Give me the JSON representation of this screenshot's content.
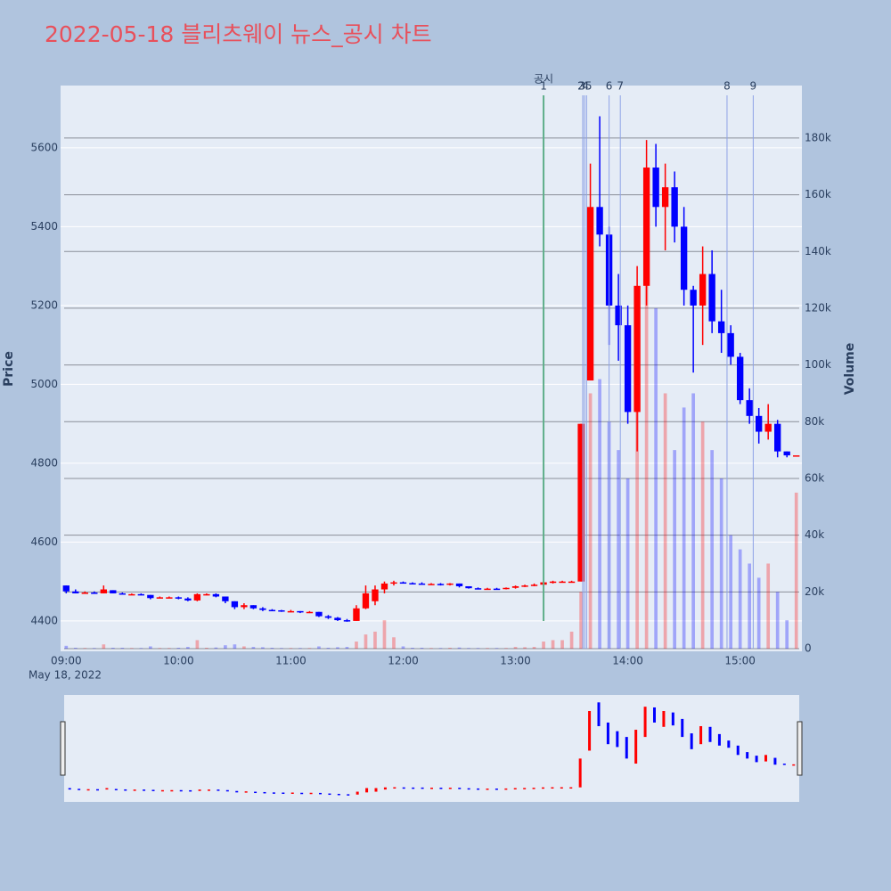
{
  "chart_data": {
    "type": "candlestick",
    "title": "2022-05-18 블리츠웨이 뉴스_공시 차트",
    "ylabel": "Price",
    "y2label": "Volume",
    "x_date_label": "May 18, 2022",
    "increasing_color": "#ff0000",
    "decreasing_color": "#0000ff",
    "xlim": [
      "2022-05-18 08:57",
      "2022-05-18 15:33"
    ],
    "xticks": [
      {
        "value": "2022-05-18 09:00",
        "label": "09:00"
      },
      {
        "value": "2022-05-18 10:00",
        "label": "10:00"
      },
      {
        "value": "2022-05-18 11:00",
        "label": "11:00"
      },
      {
        "value": "2022-05-18 12:00",
        "label": "12:00"
      },
      {
        "value": "2022-05-18 13:00",
        "label": "13:00"
      },
      {
        "value": "2022-05-18 14:00",
        "label": "14:00"
      },
      {
        "value": "2022-05-18 15:00",
        "label": "15:00"
      }
    ],
    "ylim": [
      4323,
      5758
    ],
    "yticks": [
      4400,
      4600,
      4800,
      5000,
      5200,
      5400,
      5600
    ],
    "y2lim": [
      -940,
      198500
    ],
    "y2ticks": [
      0,
      {
        "value": 20000,
        "label": "20k"
      },
      {
        "value": 40000,
        "label": "40k"
      },
      {
        "value": 60000,
        "label": "60k"
      },
      {
        "value": 80000,
        "label": "80k"
      },
      {
        "value": 100000,
        "label": "100k"
      },
      {
        "value": 120000,
        "label": "120k"
      },
      {
        "value": 140000,
        "label": "140k"
      },
      {
        "value": 160000,
        "label": "160k"
      },
      {
        "value": 180000,
        "label": "180k"
      }
    ],
    "announcement_title": "공시",
    "announcements": [
      {
        "label": "1",
        "x": "2022-05-18 13:15"
      },
      {
        "label": "2",
        "x": "2022-05-18 13:36"
      },
      {
        "label": "3",
        "x": "2022-05-18 13:36"
      },
      {
        "label": "4",
        "x": "2022-05-18 13:37"
      },
      {
        "label": "5",
        "x": "2022-05-18 13:38"
      },
      {
        "label": "6",
        "x": "2022-05-18 13:50"
      },
      {
        "label": "7",
        "x": "2022-05-18 13:56"
      },
      {
        "label": "8",
        "x": "2022-05-18 14:53"
      },
      {
        "label": "9",
        "x": "2022-05-18 15:07"
      }
    ],
    "x": [
      "2022-05-18 09:00",
      "2022-05-18 09:05",
      "2022-05-18 09:10",
      "2022-05-18 09:15",
      "2022-05-18 09:20",
      "2022-05-18 09:25",
      "2022-05-18 09:30",
      "2022-05-18 09:35",
      "2022-05-18 09:40",
      "2022-05-18 09:45",
      "2022-05-18 09:50",
      "2022-05-18 09:55",
      "2022-05-18 10:00",
      "2022-05-18 10:05",
      "2022-05-18 10:10",
      "2022-05-18 10:15",
      "2022-05-18 10:20",
      "2022-05-18 10:25",
      "2022-05-18 10:30",
      "2022-05-18 10:35",
      "2022-05-18 10:40",
      "2022-05-18 10:45",
      "2022-05-18 10:50",
      "2022-05-18 10:55",
      "2022-05-18 11:00",
      "2022-05-18 11:05",
      "2022-05-18 11:10",
      "2022-05-18 11:15",
      "2022-05-18 11:20",
      "2022-05-18 11:25",
      "2022-05-18 11:30",
      "2022-05-18 11:35",
      "2022-05-18 11:40",
      "2022-05-18 11:45",
      "2022-05-18 11:50",
      "2022-05-18 11:55",
      "2022-05-18 12:00",
      "2022-05-18 12:05",
      "2022-05-18 12:10",
      "2022-05-18 12:15",
      "2022-05-18 12:20",
      "2022-05-18 12:25",
      "2022-05-18 12:30",
      "2022-05-18 12:35",
      "2022-05-18 12:40",
      "2022-05-18 12:45",
      "2022-05-18 12:50",
      "2022-05-18 12:55",
      "2022-05-18 13:00",
      "2022-05-18 13:05",
      "2022-05-18 13:10",
      "2022-05-18 13:15",
      "2022-05-18 13:20",
      "2022-05-18 13:25",
      "2022-05-18 13:30",
      "2022-05-18 13:35",
      "2022-05-18 13:40",
      "2022-05-18 13:45",
      "2022-05-18 13:50",
      "2022-05-18 13:55",
      "2022-05-18 14:00",
      "2022-05-18 14:05",
      "2022-05-18 14:10",
      "2022-05-18 14:15",
      "2022-05-18 14:20",
      "2022-05-18 14:25",
      "2022-05-18 14:30",
      "2022-05-18 14:35",
      "2022-05-18 14:40",
      "2022-05-18 14:45",
      "2022-05-18 14:50",
      "2022-05-18 14:55",
      "2022-05-18 15:00",
      "2022-05-18 15:05",
      "2022-05-18 15:10",
      "2022-05-18 15:15",
      "2022-05-18 15:20",
      "2022-05-18 15:25",
      "2022-05-18 15:30"
    ],
    "open": [
      4490,
      4475,
      4470,
      4472,
      4470,
      4478,
      4470,
      4468,
      4468,
      4466,
      4460,
      4460,
      4460,
      4457,
      4452,
      4468,
      4468,
      4462,
      4450,
      4435,
      4440,
      4432,
      4428,
      4427,
      4425,
      4425,
      4422,
      4423,
      4412,
      4408,
      4402,
      4400,
      4432,
      4450,
      4480,
      4495,
      4498,
      4496,
      4495,
      4494,
      4494,
      4492,
      4495,
      4488,
      4483,
      4482,
      4482,
      4481,
      4484,
      4488,
      4490,
      4492,
      4498,
      4500,
      4500,
      4500,
      5010,
      5450,
      5380,
      5200,
      5150,
      4930,
      5250,
      5550,
      5450,
      5500,
      5400,
      5240,
      5200,
      5280,
      5160,
      5130,
      5070,
      4960,
      4920,
      4880,
      4900,
      4830,
      4820
    ],
    "high": [
      4490,
      4480,
      4475,
      4475,
      4490,
      4478,
      4472,
      4470,
      4470,
      4466,
      4462,
      4462,
      4462,
      4460,
      4470,
      4470,
      4470,
      4462,
      4450,
      4445,
      4440,
      4435,
      4430,
      4428,
      4428,
      4425,
      4425,
      4423,
      4415,
      4410,
      4405,
      4440,
      4490,
      4490,
      4500,
      4502,
      4500,
      4498,
      4498,
      4496,
      4496,
      4496,
      4495,
      4488,
      4485,
      4484,
      4484,
      4485,
      4490,
      4492,
      4495,
      4500,
      4502,
      4502,
      4502,
      4900,
      5560,
      5680,
      5400,
      5280,
      5200,
      5300,
      5620,
      5610,
      5560,
      5540,
      5450,
      5250,
      5350,
      5340,
      5240,
      5150,
      5080,
      4990,
      4940,
      4950,
      4910,
      4830,
      4820
    ],
    "low": [
      4470,
      4470,
      4470,
      4470,
      4470,
      4470,
      4468,
      4468,
      4465,
      4455,
      4458,
      4458,
      4455,
      4450,
      4450,
      4465,
      4460,
      4445,
      4430,
      4430,
      4430,
      4425,
      4425,
      4423,
      4422,
      4420,
      4420,
      4410,
      4405,
      4400,
      4398,
      4400,
      4430,
      4440,
      4470,
      4490,
      4495,
      4494,
      4493,
      4492,
      4490,
      4490,
      4485,
      4482,
      4480,
      4480,
      4480,
      4480,
      4482,
      4486,
      4488,
      4490,
      4495,
      4497,
      4498,
      4500,
      5010,
      5350,
      5100,
      5060,
      4900,
      4830,
      5200,
      5400,
      5340,
      5360,
      5200,
      5030,
      5100,
      5130,
      5080,
      5050,
      4950,
      4900,
      4850,
      4860,
      4815,
      4815,
      4820
    ],
    "close": [
      4475,
      4470,
      4472,
      4470,
      4480,
      4470,
      4468,
      4468,
      4466,
      4458,
      4460,
      4460,
      4457,
      4452,
      4468,
      4468,
      4462,
      4450,
      4435,
      4440,
      4432,
      4428,
      4427,
      4425,
      4425,
      4422,
      4423,
      4412,
      4408,
      4402,
      4400,
      4432,
      4470,
      4480,
      4495,
      4498,
      4496,
      4495,
      4494,
      4494,
      4492,
      4495,
      4488,
      4483,
      4482,
      4482,
      4481,
      4484,
      4488,
      4490,
      4492,
      4498,
      4500,
      4500,
      4500,
      4900,
      5450,
      5380,
      5200,
      5150,
      4930,
      5250,
      5550,
      5450,
      5500,
      5400,
      5240,
      5200,
      5280,
      5160,
      5130,
      5070,
      4960,
      4920,
      4880,
      4900,
      4830,
      4820,
      4820
    ],
    "volume": [
      1000,
      300,
      200,
      200,
      1500,
      300,
      300,
      200,
      200,
      800,
      200,
      200,
      300,
      600,
      3000,
      300,
      400,
      1200,
      1500,
      800,
      600,
      500,
      300,
      200,
      200,
      200,
      200,
      800,
      300,
      500,
      600,
      2500,
      5000,
      6000,
      10000,
      4000,
      800,
      300,
      300,
      200,
      200,
      300,
      400,
      200,
      200,
      200,
      200,
      200,
      600,
      500,
      600,
      2500,
      3000,
      3000,
      6000,
      20000,
      90000,
      95000,
      80000,
      70000,
      60000,
      110000,
      160000,
      120000,
      90000,
      70000,
      85000,
      90000,
      80000,
      70000,
      60000,
      40000,
      35000,
      30000,
      25000,
      30000,
      20000,
      10000,
      55000
    ]
  }
}
